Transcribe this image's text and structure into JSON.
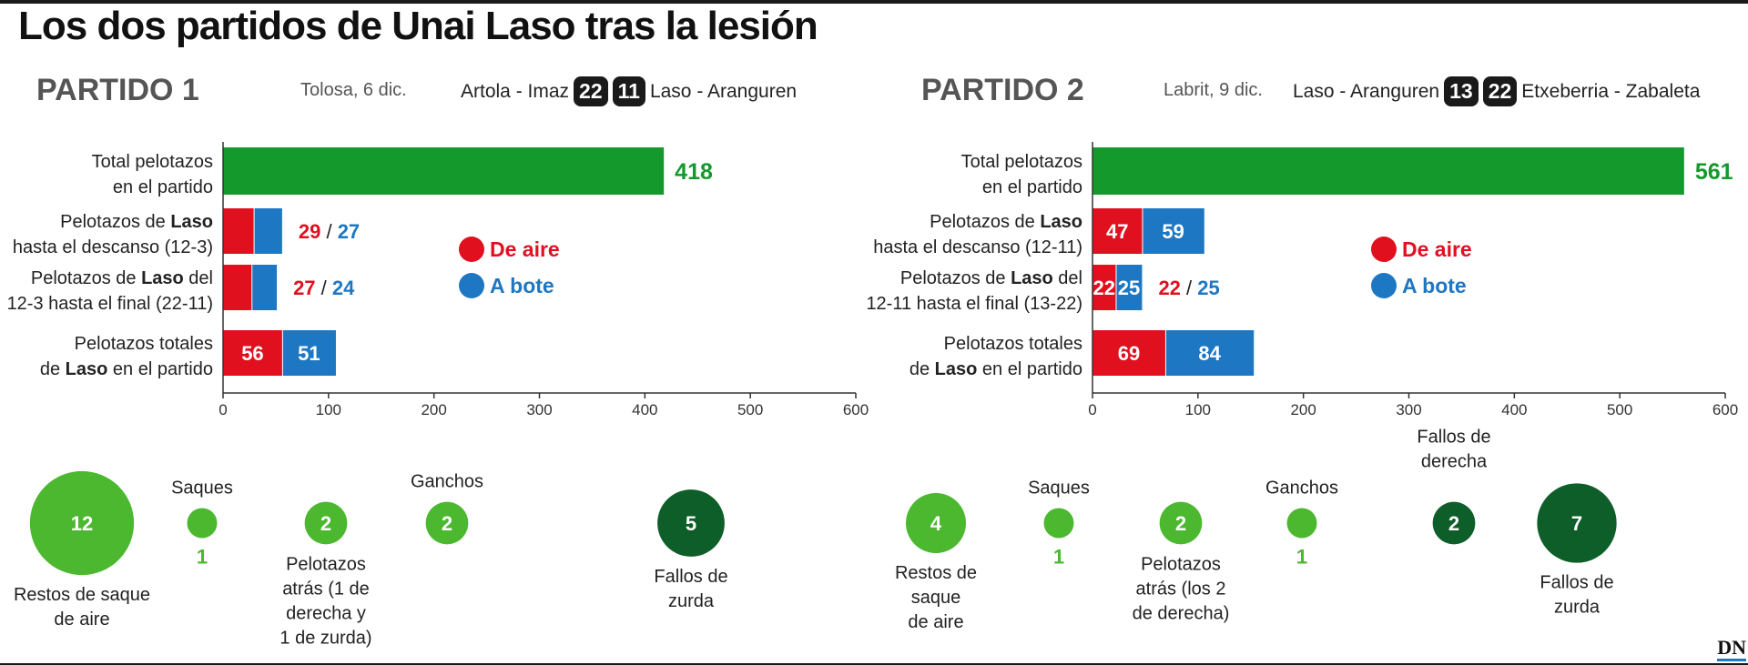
{
  "title": "Los dos partidos de Unai Laso tras la lesión",
  "logo": "DN",
  "colors": {
    "total": "#14992c",
    "aire": "#e0101f",
    "bote": "#1e77c2",
    "circle_light": "#4cb82f",
    "circle_dark": "#0e5e2a",
    "axis": "#333333"
  },
  "chart_data": [
    {
      "type": "bar",
      "match_title": "PARTIDO 1",
      "venue": "Tolosa, 6 dic.",
      "team_left": "Artola - Imaz",
      "score_left": "22",
      "score_right": "11",
      "team_right": "Laso - Aranguren",
      "categories": [
        [
          "Total pelotazos",
          "en el partido"
        ],
        [
          "Pelotazos de Laso",
          "hasta el descanso (12-3)"
        ],
        [
          "Pelotazos de Laso del",
          "12-3 hasta el final (22-11)"
        ],
        [
          "Pelotazos totales",
          "de Laso en el partido"
        ]
      ],
      "total": 418,
      "series": [
        {
          "name": "De aire",
          "values": [
            null,
            29,
            27,
            56
          ]
        },
        {
          "name": "A bote",
          "values": [
            null,
            27,
            24,
            51
          ]
        }
      ],
      "xlim": [
        0,
        600
      ],
      "xticks": [
        0,
        100,
        200,
        300,
        400,
        500,
        600
      ],
      "legend": [
        "De aire",
        "A bote"
      ],
      "stats": [
        {
          "value": 12,
          "label": [
            "Restos de saque",
            "de aire"
          ],
          "shade": "light",
          "display": "inside"
        },
        {
          "value": 1,
          "label": [
            "Saques"
          ],
          "shade": "light",
          "display": "below"
        },
        {
          "value": 2,
          "label": [
            "Pelotazos",
            "atrás (1 de",
            "derecha y",
            "1 de zurda)"
          ],
          "shade": "light",
          "display": "inside"
        },
        {
          "value": 2,
          "label": [
            "Ganchos"
          ],
          "shade": "light",
          "display": "inside"
        },
        {
          "value": 5,
          "label": [
            "Fallos de",
            "zurda"
          ],
          "shade": "dark",
          "display": "inside"
        }
      ]
    },
    {
      "type": "bar",
      "match_title": "PARTIDO 2",
      "venue": "Labrit, 9 dic.",
      "team_left": "Laso - Aranguren",
      "score_left": "13",
      "score_right": "22",
      "team_right": "Etxeberria - Zabaleta",
      "categories": [
        [
          "Total pelotazos",
          "en el partido"
        ],
        [
          "Pelotazos de Laso",
          "hasta el descanso (12-11)"
        ],
        [
          "Pelotazos de Laso del",
          "12-11 hasta el final (13-22)"
        ],
        [
          "Pelotazos totales",
          "de Laso en el partido"
        ]
      ],
      "total": 561,
      "series": [
        {
          "name": "De aire",
          "values": [
            null,
            47,
            22,
            69
          ]
        },
        {
          "name": "A bote",
          "values": [
            null,
            59,
            25,
            84
          ]
        }
      ],
      "xlim": [
        0,
        600
      ],
      "xticks": [
        0,
        100,
        200,
        300,
        400,
        500,
        600
      ],
      "legend": [
        "De aire",
        "A bote"
      ],
      "stats": [
        {
          "value": 4,
          "label": [
            "Restos de",
            "saque",
            "de aire"
          ],
          "shade": "light",
          "display": "inside"
        },
        {
          "value": 1,
          "label": [
            "Saques"
          ],
          "shade": "light",
          "display": "below"
        },
        {
          "value": 2,
          "label": [
            "Pelotazos",
            "atrás (los 2",
            "de derecha)"
          ],
          "shade": "light",
          "display": "inside"
        },
        {
          "value": 1,
          "label": [
            "Ganchos"
          ],
          "shade": "light",
          "display": "below"
        },
        {
          "value": 2,
          "label": [
            "Fallos de",
            "derecha"
          ],
          "shade": "dark",
          "display": "inside"
        },
        {
          "value": 7,
          "label": [
            "Fallos de",
            "zurda"
          ],
          "shade": "dark",
          "display": "inside"
        }
      ]
    }
  ]
}
